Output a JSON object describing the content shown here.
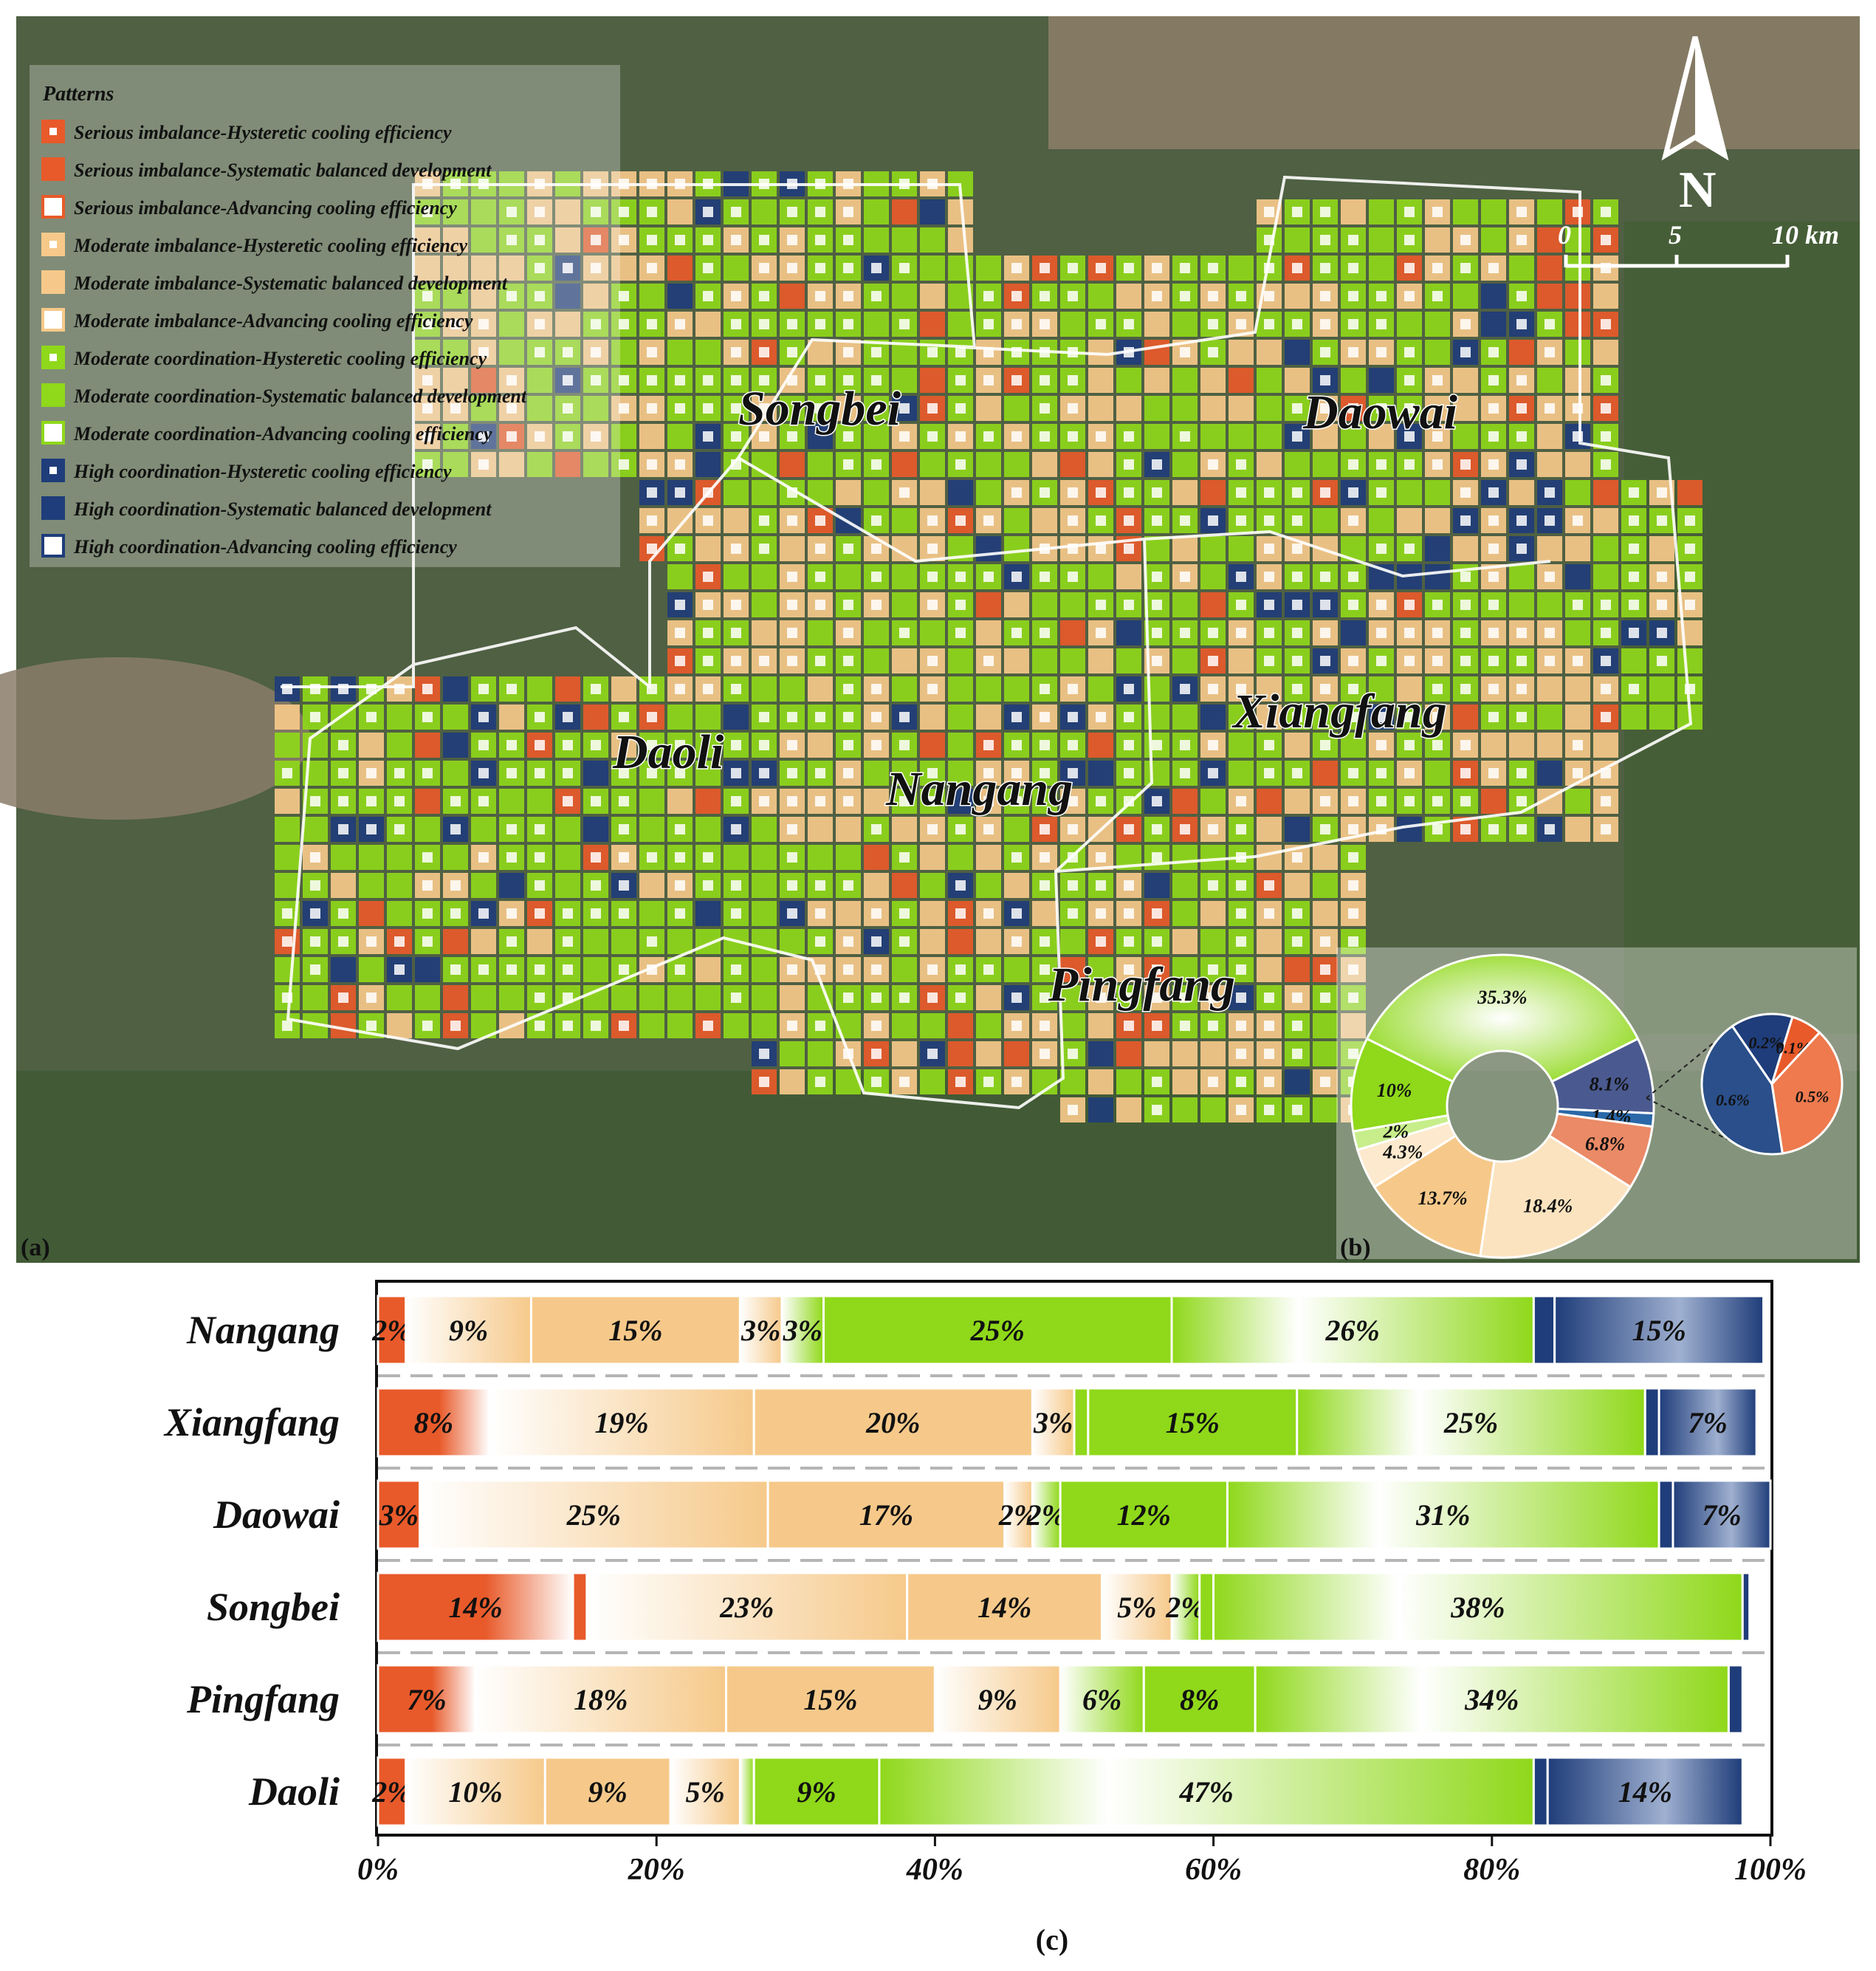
{
  "panel_labels": {
    "a": "(a)",
    "b": "(b)",
    "c": "(c)"
  },
  "legend": {
    "title": "Patterns",
    "items": [
      {
        "label": "Serious imbalance-Hysteretic cooling efficiency",
        "color": "#e85a2a",
        "style": "dot"
      },
      {
        "label": "Serious imbalance-Systematic balanced development",
        "color": "#e85a2a",
        "style": "solid"
      },
      {
        "label": "Serious imbalance-Advancing cooling efficiency",
        "color": "#e85a2a",
        "style": "hollow"
      },
      {
        "label": "Moderate imbalance-Hysteretic cooling efficiency",
        "color": "#f6c98a",
        "style": "dot"
      },
      {
        "label": "Moderate imbalance-Systematic balanced development",
        "color": "#f6c98a",
        "style": "solid"
      },
      {
        "label": "Moderate imbalance-Advancing cooling efficiency",
        "color": "#f6c98a",
        "style": "hollow"
      },
      {
        "label": "Moderate coordination-Hysteretic cooling efficiency",
        "color": "#8fd81a",
        "style": "dot"
      },
      {
        "label": "Moderate coordination-Systematic balanced development",
        "color": "#8fd81a",
        "style": "solid"
      },
      {
        "label": "Moderate coordination-Advancing cooling efficiency",
        "color": "#8fd81a",
        "style": "hollow"
      },
      {
        "label": "High coordination-Hysteretic cooling efficiency",
        "color": "#1f3d7a",
        "style": "dot"
      },
      {
        "label": "High coordination-Systematic balanced development",
        "color": "#1f3d7a",
        "style": "solid"
      },
      {
        "label": "High coordination-Advancing cooling efficiency",
        "color": "#1f3d7a",
        "style": "hollow"
      }
    ]
  },
  "north_arrow": "N",
  "scale_bar": {
    "labels": [
      "0",
      "5",
      "10 km"
    ]
  },
  "districts": [
    "Songbei",
    "Daowai",
    "Daoli",
    "Nangang",
    "Xiangfang",
    "Pingfang"
  ],
  "colors": {
    "serious": "#e85a2a",
    "moderate_imbalance": "#f6c98a",
    "moderate_coordination": "#8fd81a",
    "high": "#1f3d7a",
    "satellite": "#4f6043"
  },
  "chart_data": [
    {
      "type": "pie",
      "variant": "donut",
      "panel": "b",
      "slices": [
        {
          "label": "35.3%",
          "value": 35.3,
          "pattern": "Moderate coordination-Advancing cooling efficiency"
        },
        {
          "label": "8.1%",
          "value": 8.1,
          "pattern": "High coordination-Advancing cooling efficiency"
        },
        {
          "label": "1.4%",
          "value": 1.4,
          "pattern": "High coordination-Hysteretic cooling efficiency"
        },
        {
          "label": "6.8%",
          "value": 6.8,
          "pattern": "Serious imbalance-Advancing cooling efficiency"
        },
        {
          "label": "18.4%",
          "value": 18.4,
          "pattern": "Moderate imbalance-Advancing cooling efficiency"
        },
        {
          "label": "13.7%",
          "value": 13.7,
          "pattern": "Moderate imbalance-Systematic balanced development"
        },
        {
          "label": "4.3%",
          "value": 4.3,
          "pattern": "Moderate imbalance-Hysteretic cooling efficiency"
        },
        {
          "label": "2%",
          "value": 2,
          "pattern": "Moderate coordination-Hysteretic cooling efficiency"
        },
        {
          "label": "10%",
          "value": 10,
          "pattern": "Moderate coordination-Systematic balanced development"
        }
      ],
      "detail_pie": [
        {
          "label": "0.2%",
          "value": 0.2,
          "pattern": "High coordination-Systematic balanced development"
        },
        {
          "label": "0.1%",
          "value": 0.1,
          "pattern": "Serious imbalance-Systematic balanced development"
        },
        {
          "label": "0.5%",
          "value": 0.5,
          "pattern": "Serious imbalance-Hysteretic cooling efficiency"
        },
        {
          "label": "0.6%",
          "value": 0.6,
          "pattern": "High coordination-Advancing cooling efficiency"
        }
      ]
    },
    {
      "type": "bar",
      "orientation": "horizontal",
      "stacked": true,
      "panel": "c",
      "categories": [
        "Nangang",
        "Xiangfang",
        "Daowai",
        "Songbei",
        "Pingfang",
        "Daoli"
      ],
      "xlim": [
        0,
        100
      ],
      "ticks": [
        "0%",
        "20%",
        "40%",
        "60%",
        "80%",
        "100%"
      ],
      "rows": [
        {
          "name": "Nangang",
          "segments": [
            {
              "value": 2,
              "label": "2%",
              "cls": "serious"
            },
            {
              "value": 9,
              "label": "9%",
              "cls": "mi_fade"
            },
            {
              "value": 15,
              "label": "15%",
              "cls": "mi"
            },
            {
              "value": 3,
              "label": "3%",
              "cls": "mi_fade"
            },
            {
              "value": 3,
              "label": "3%",
              "cls": "mc_fade"
            },
            {
              "value": 25,
              "label": "25%",
              "cls": "mc"
            },
            {
              "value": 26,
              "label": "26%",
              "cls": "mc_fade2"
            },
            {
              "value": 1.5,
              "label": "",
              "cls": "high"
            },
            {
              "value": 15,
              "label": "15%",
              "cls": "high_fade"
            }
          ]
        },
        {
          "name": "Xiangfang",
          "segments": [
            {
              "value": 8,
              "label": "8%",
              "cls": "serious_fade"
            },
            {
              "value": 19,
              "label": "19%",
              "cls": "mi_fade"
            },
            {
              "value": 20,
              "label": "20%",
              "cls": "mi"
            },
            {
              "value": 3,
              "label": "3%",
              "cls": "mi_fade"
            },
            {
              "value": 1,
              "label": "",
              "cls": "mc"
            },
            {
              "value": 15,
              "label": "15%",
              "cls": "mc"
            },
            {
              "value": 25,
              "label": "25%",
              "cls": "mc_fade2"
            },
            {
              "value": 1,
              "label": "",
              "cls": "high"
            },
            {
              "value": 7,
              "label": "7%",
              "cls": "high_fade"
            }
          ]
        },
        {
          "name": "Daowai",
          "segments": [
            {
              "value": 3,
              "label": "3%",
              "cls": "serious"
            },
            {
              "value": 25,
              "label": "25%",
              "cls": "mi_fade"
            },
            {
              "value": 17,
              "label": "17%",
              "cls": "mi"
            },
            {
              "value": 2,
              "label": "2%",
              "cls": "mi_fade"
            },
            {
              "value": 2,
              "label": "2%",
              "cls": "mc_fade"
            },
            {
              "value": 12,
              "label": "12%",
              "cls": "mc"
            },
            {
              "value": 31,
              "label": "31%",
              "cls": "mc_fade2"
            },
            {
              "value": 1,
              "label": "",
              "cls": "high"
            },
            {
              "value": 7,
              "label": "7%",
              "cls": "high_fade"
            }
          ]
        },
        {
          "name": "Songbei",
          "segments": [
            {
              "value": 14,
              "label": "14%",
              "cls": "serious_fade"
            },
            {
              "value": 1,
              "label": "",
              "cls": "serious"
            },
            {
              "value": 23,
              "label": "23%",
              "cls": "mi_fade"
            },
            {
              "value": 14,
              "label": "14%",
              "cls": "mi"
            },
            {
              "value": 5,
              "label": "5%",
              "cls": "mi_fade"
            },
            {
              "value": 2,
              "label": "2%",
              "cls": "mc_fade"
            },
            {
              "value": 1,
              "label": "",
              "cls": "mc"
            },
            {
              "value": 38,
              "label": "38%",
              "cls": "mc_fade2"
            },
            {
              "value": 0.5,
              "label": "",
              "cls": "high"
            }
          ]
        },
        {
          "name": "Pingfang",
          "segments": [
            {
              "value": 7,
              "label": "7%",
              "cls": "serious_fade"
            },
            {
              "value": 18,
              "label": "18%",
              "cls": "mi_fade"
            },
            {
              "value": 15,
              "label": "15%",
              "cls": "mi"
            },
            {
              "value": 9,
              "label": "9%",
              "cls": "mi_fade"
            },
            {
              "value": 6,
              "label": "6%",
              "cls": "mc_fade"
            },
            {
              "value": 8,
              "label": "8%",
              "cls": "mc"
            },
            {
              "value": 34,
              "label": "34%",
              "cls": "mc_fade2"
            },
            {
              "value": 1,
              "label": "",
              "cls": "high"
            }
          ]
        },
        {
          "name": "Daoli",
          "segments": [
            {
              "value": 2,
              "label": "2%",
              "cls": "serious"
            },
            {
              "value": 10,
              "label": "10%",
              "cls": "mi_fade"
            },
            {
              "value": 9,
              "label": "9%",
              "cls": "mi"
            },
            {
              "value": 5,
              "label": "5%",
              "cls": "mi_fade"
            },
            {
              "value": 1,
              "label": "",
              "cls": "mc_fade"
            },
            {
              "value": 9,
              "label": "9%",
              "cls": "mc"
            },
            {
              "value": 47,
              "label": "47%",
              "cls": "mc_fade2"
            },
            {
              "value": 1,
              "label": "",
              "cls": "high"
            },
            {
              "value": 14,
              "label": "14%",
              "cls": "high_fade"
            }
          ]
        }
      ]
    }
  ]
}
